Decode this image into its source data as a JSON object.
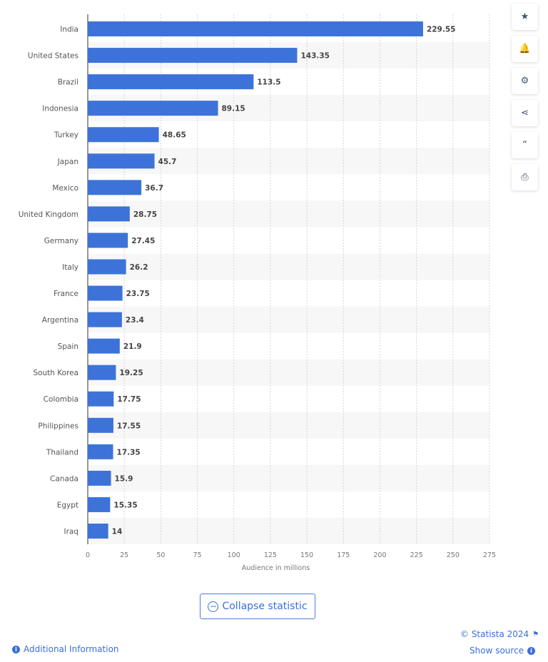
{
  "chart_data": {
    "type": "bar",
    "orientation": "horizontal",
    "categories": [
      "India",
      "United States",
      "Brazil",
      "Indonesia",
      "Turkey",
      "Japan",
      "Mexico",
      "United Kingdom",
      "Germany",
      "Italy",
      "France",
      "Argentina",
      "Spain",
      "South Korea",
      "Colombia",
      "Philippines",
      "Thailand",
      "Canada",
      "Egypt",
      "Iraq"
    ],
    "values": [
      229.55,
      143.35,
      113.5,
      89.15,
      48.65,
      45.7,
      36.7,
      28.75,
      27.45,
      26.2,
      23.75,
      23.4,
      21.9,
      19.25,
      17.75,
      17.55,
      17.35,
      15.9,
      15.35,
      14
    ],
    "labels": [
      "229.55",
      "143.35",
      "113.5",
      "89.15",
      "48.65",
      "45.7",
      "36.7",
      "28.75",
      "27.45",
      "26.2",
      "23.75",
      "23.4",
      "21.9",
      "19.25",
      "17.75",
      "17.55",
      "17.35",
      "15.9",
      "15.35",
      "14"
    ],
    "xlabel": "Audience in millions",
    "xlim": [
      0,
      275
    ],
    "xticks": [
      "0",
      "25",
      "50",
      "75",
      "100",
      "125",
      "150",
      "175",
      "200",
      "225",
      "250",
      "275"
    ],
    "grid": true,
    "bar_color": "#3d73d9"
  },
  "sidebar": [
    {
      "icon": "star-icon",
      "glyph": "★"
    },
    {
      "icon": "bell-icon",
      "glyph": "🔔"
    },
    {
      "icon": "gear-icon",
      "glyph": "⚙"
    },
    {
      "icon": "share-icon",
      "glyph": "⋖"
    },
    {
      "icon": "quote-icon",
      "glyph": "“"
    },
    {
      "icon": "print-icon",
      "glyph": "⎙"
    }
  ],
  "collapse_label": "Collapse statistic",
  "copyright": "© Statista 2024",
  "show_source": "Show source",
  "additional_info": "Additional Information"
}
